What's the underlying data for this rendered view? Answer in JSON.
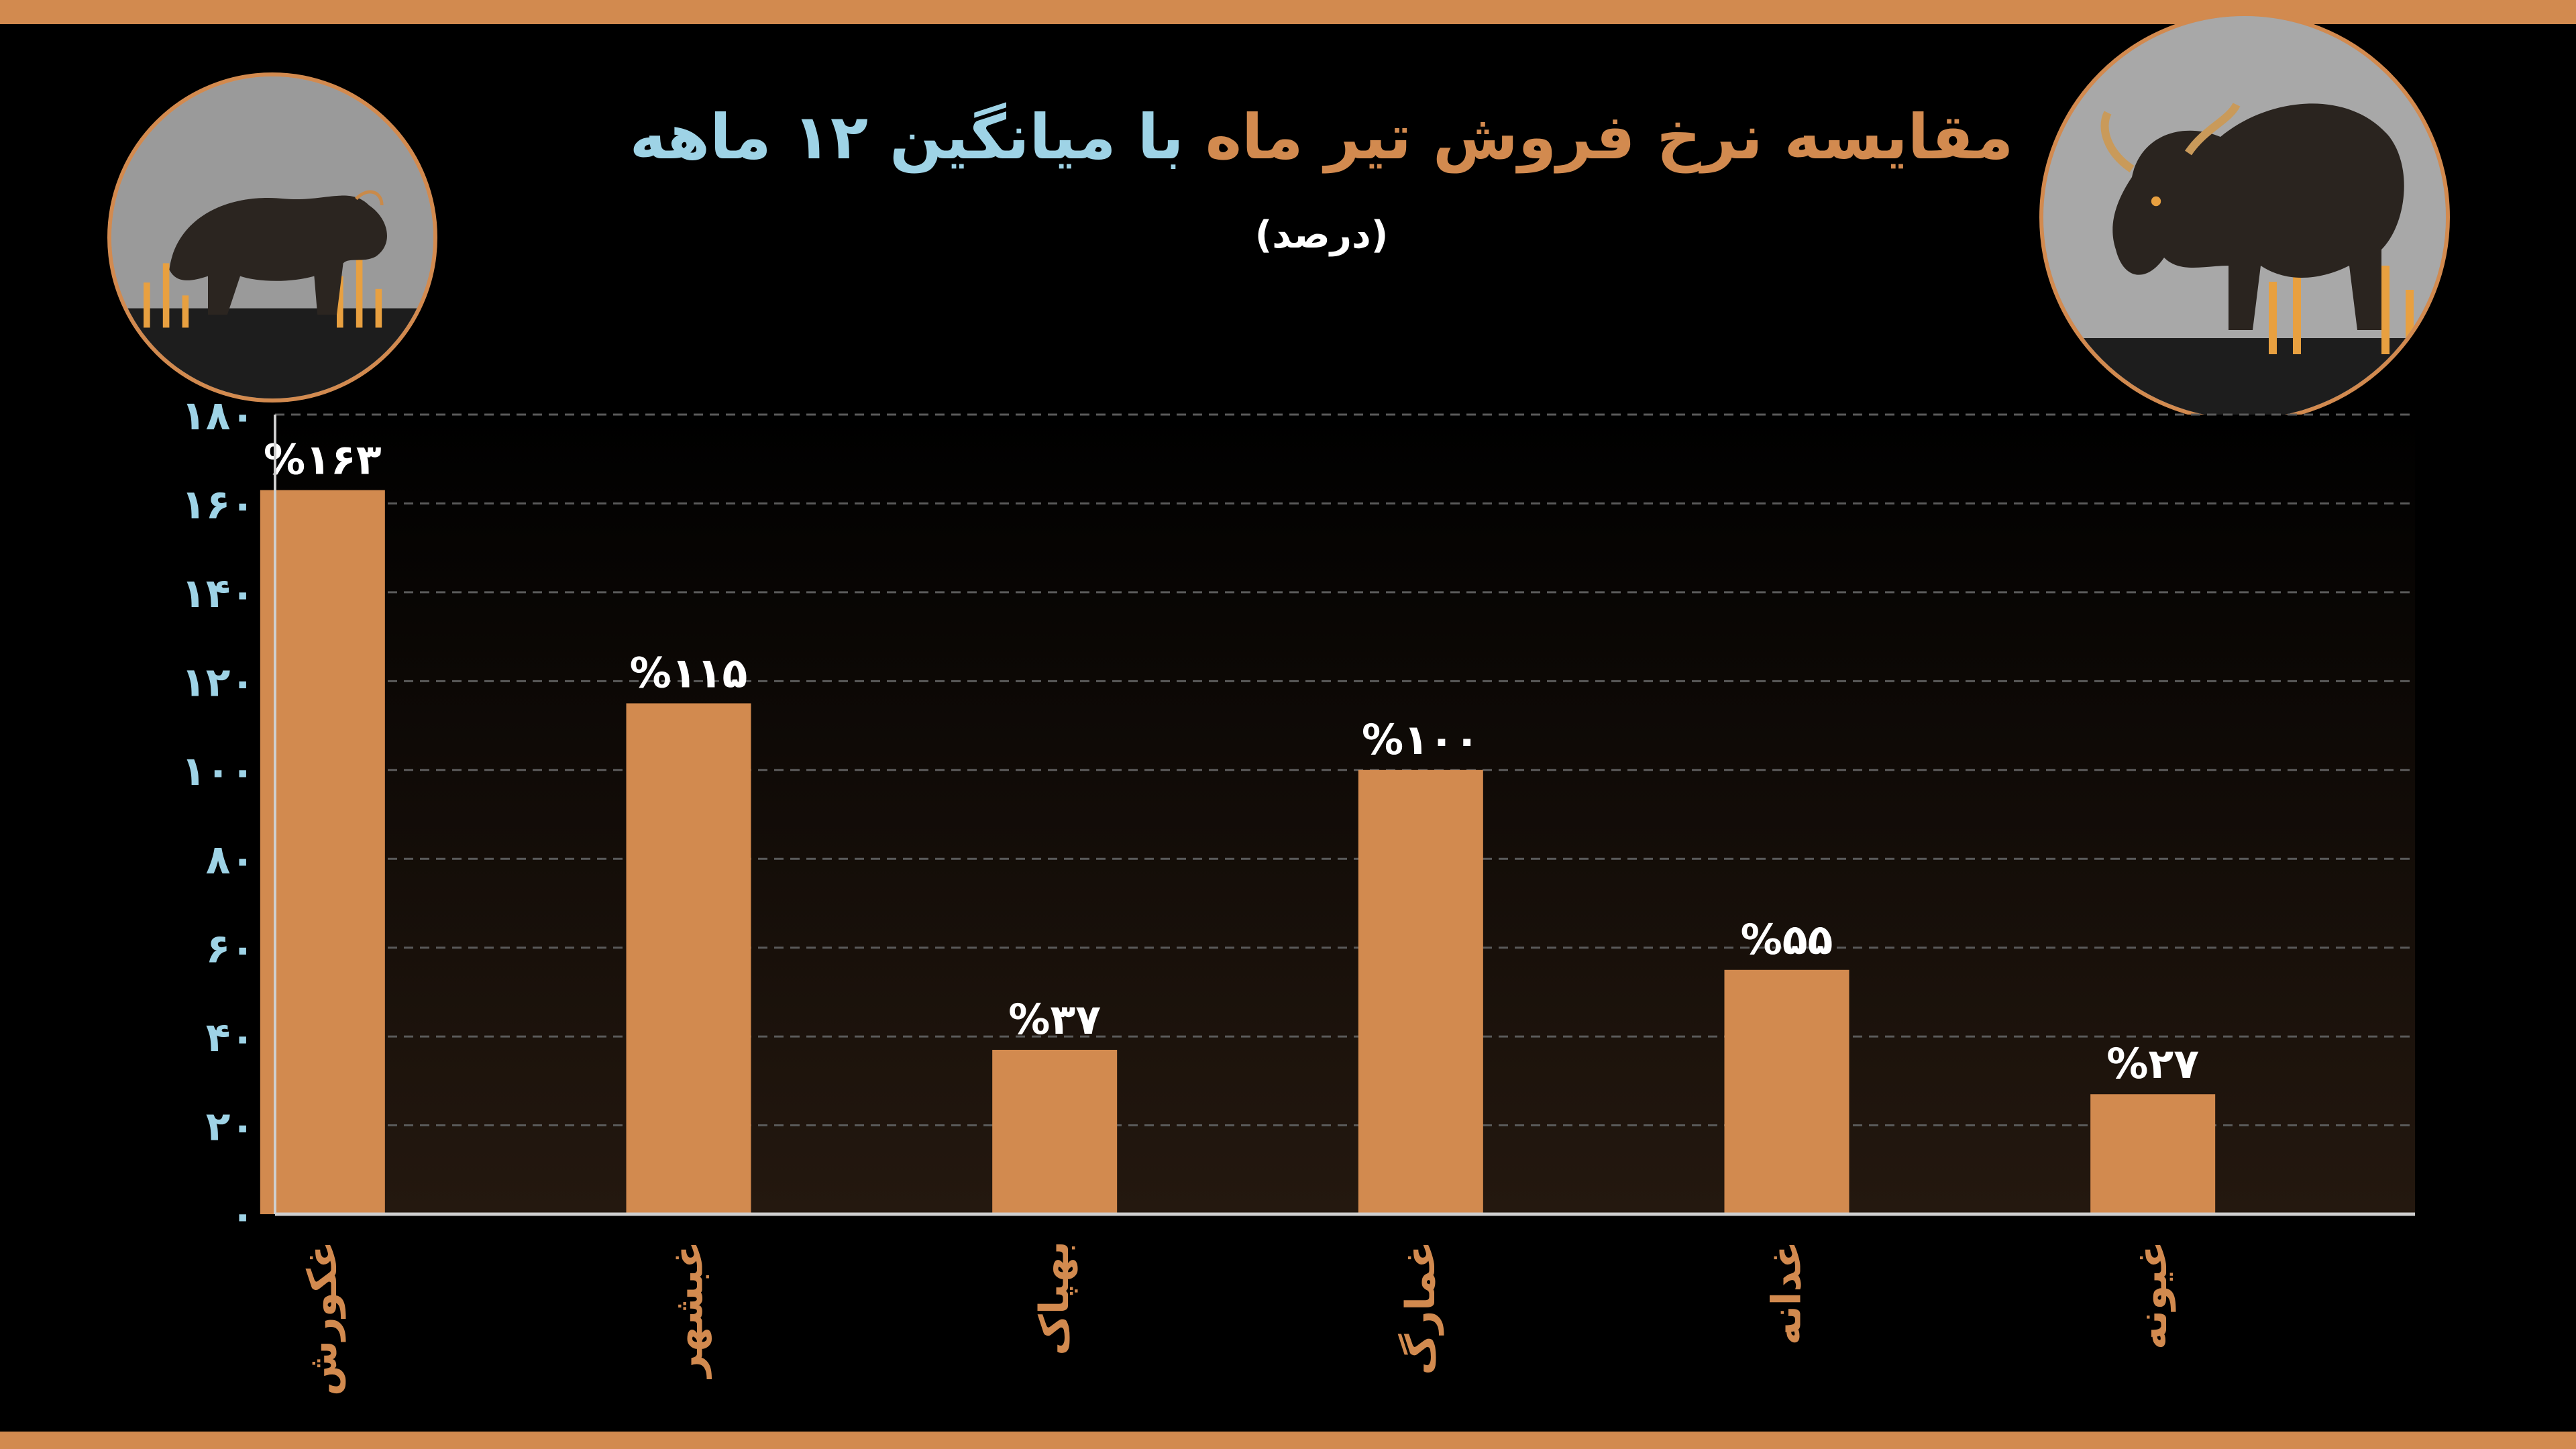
{
  "chart_data": {
    "type": "bar",
    "title_part1": "مقایسه نرخ فروش تیر ماه",
    "title_part2": "با میانگین ۱۲ ماهه",
    "subtitle": "(درصد)",
    "categories": [
      "غکورش",
      "غبشهر",
      "بهپاک",
      "غمارگ",
      "غدانه",
      "غیونه"
    ],
    "values": [
      163,
      115,
      37,
      100,
      55,
      27
    ],
    "data_labels": [
      "%۱۶۳",
      "%۱۱۵",
      "%۳۷",
      "%۱۰۰",
      "%۵۵",
      "%۲۷"
    ],
    "ylim": [
      0,
      180
    ],
    "yticks": [
      0,
      20,
      40,
      60,
      80,
      100,
      120,
      140,
      160,
      180
    ],
    "ytick_labels": [
      "۰",
      "۲۰",
      "۴۰",
      "۶۰",
      "۸۰",
      "۱۰۰",
      "۱۲۰",
      "۱۴۰",
      "۱۶۰",
      "۱۸۰"
    ],
    "grid": true,
    "bar_color": "#D28A4F",
    "tick_color": "#9ED3E6",
    "title_color_1": "#D28A4F",
    "title_color_2": "#9ED3E6",
    "xlabel": "",
    "ylabel": ""
  }
}
